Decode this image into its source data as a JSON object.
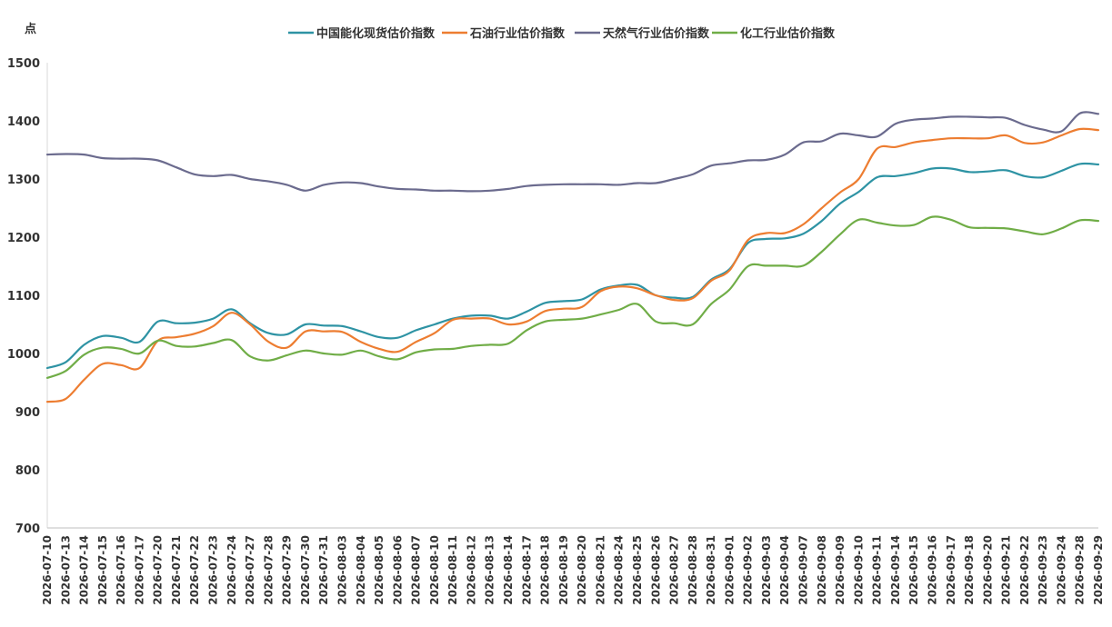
{
  "chart_data": {
    "type": "line",
    "ylabel": "点",
    "ylim": [
      700,
      1500
    ],
    "yticks": [
      700,
      800,
      900,
      1000,
      1100,
      1200,
      1300,
      1400,
      1500
    ],
    "grid": false,
    "legend_position": "top",
    "x": [
      "2026-07-10",
      "2026-07-13",
      "2026-07-14",
      "2026-07-15",
      "2026-07-16",
      "2026-07-17",
      "2026-07-20",
      "2026-07-21",
      "2026-07-22",
      "2026-07-23",
      "2026-07-24",
      "2026-07-27",
      "2026-07-28",
      "2026-07-29",
      "2026-07-30",
      "2026-07-31",
      "2026-08-03",
      "2026-08-04",
      "2026-08-05",
      "2026-08-06",
      "2026-08-07",
      "2026-08-10",
      "2026-08-11",
      "2026-08-12",
      "2026-08-13",
      "2026-08-14",
      "2026-08-17",
      "2026-08-18",
      "2026-08-19",
      "2026-08-20",
      "2026-08-21",
      "2026-08-24",
      "2026-08-25",
      "2026-08-26",
      "2026-08-27",
      "2026-08-28",
      "2026-08-31",
      "2026-09-01",
      "2026-09-02",
      "2026-09-03",
      "2026-09-04",
      "2026-09-07",
      "2026-09-08",
      "2026-09-09",
      "2026-09-10",
      "2026-09-11",
      "2026-09-14",
      "2026-09-15",
      "2026-09-16",
      "2026-09-17",
      "2026-09-18",
      "2026-09-20",
      "2026-09-21",
      "2026-09-22",
      "2026-09-23",
      "2026-09-24",
      "2026-09-28",
      "2026-09-29"
    ],
    "series": [
      {
        "name": "中国能化现货估价指数",
        "color": "#2E93A4",
        "values": [
          975,
          985,
          1015,
          1030,
          1027,
          1020,
          1055,
          1052,
          1053,
          1060,
          1076,
          1052,
          1035,
          1033,
          1050,
          1048,
          1047,
          1038,
          1028,
          1027,
          1040,
          1050,
          1060,
          1065,
          1065,
          1060,
          1072,
          1087,
          1090,
          1093,
          1110,
          1117,
          1118,
          1100,
          1096,
          1097,
          1127,
          1145,
          1190,
          1197,
          1198,
          1206,
          1228,
          1258,
          1278,
          1303,
          1305,
          1310,
          1318,
          1318,
          1312,
          1313,
          1315,
          1305,
          1303,
          1314,
          1326,
          1325
        ]
      },
      {
        "name": "石油行业估价指数",
        "color": "#ED7D31",
        "values": [
          917,
          922,
          955,
          982,
          980,
          975,
          1022,
          1028,
          1034,
          1047,
          1070,
          1050,
          1020,
          1010,
          1038,
          1038,
          1037,
          1020,
          1008,
          1003,
          1020,
          1035,
          1058,
          1060,
          1060,
          1050,
          1055,
          1073,
          1077,
          1080,
          1107,
          1115,
          1112,
          1100,
          1092,
          1095,
          1125,
          1143,
          1195,
          1207,
          1207,
          1222,
          1250,
          1277,
          1300,
          1352,
          1355,
          1363,
          1367,
          1370,
          1370,
          1370,
          1375,
          1362,
          1363,
          1375,
          1386,
          1384
        ]
      },
      {
        "name": "天然气行业估价指数",
        "color": "#6B6B8E",
        "values": [
          1342,
          1343,
          1342,
          1336,
          1335,
          1335,
          1332,
          1320,
          1308,
          1305,
          1307,
          1300,
          1296,
          1290,
          1280,
          1290,
          1294,
          1293,
          1287,
          1283,
          1282,
          1280,
          1280,
          1279,
          1280,
          1283,
          1288,
          1290,
          1291,
          1291,
          1291,
          1290,
          1293,
          1293,
          1300,
          1308,
          1323,
          1327,
          1332,
          1333,
          1342,
          1363,
          1365,
          1378,
          1375,
          1373,
          1395,
          1402,
          1404,
          1407,
          1407,
          1406,
          1405,
          1393,
          1385,
          1382,
          1413,
          1412
        ]
      },
      {
        "name": "化工行业估价指数",
        "color": "#70AD47",
        "values": [
          958,
          970,
          998,
          1010,
          1008,
          1000,
          1022,
          1013,
          1012,
          1018,
          1023,
          995,
          988,
          997,
          1005,
          1000,
          998,
          1005,
          995,
          990,
          1002,
          1007,
          1008,
          1013,
          1015,
          1017,
          1040,
          1055,
          1058,
          1060,
          1067,
          1075,
          1085,
          1055,
          1052,
          1050,
          1085,
          1110,
          1150,
          1151,
          1151,
          1151,
          1175,
          1205,
          1230,
          1225,
          1220,
          1221,
          1235,
          1230,
          1217,
          1216,
          1215,
          1210,
          1205,
          1215,
          1229,
          1228
        ]
      }
    ]
  }
}
